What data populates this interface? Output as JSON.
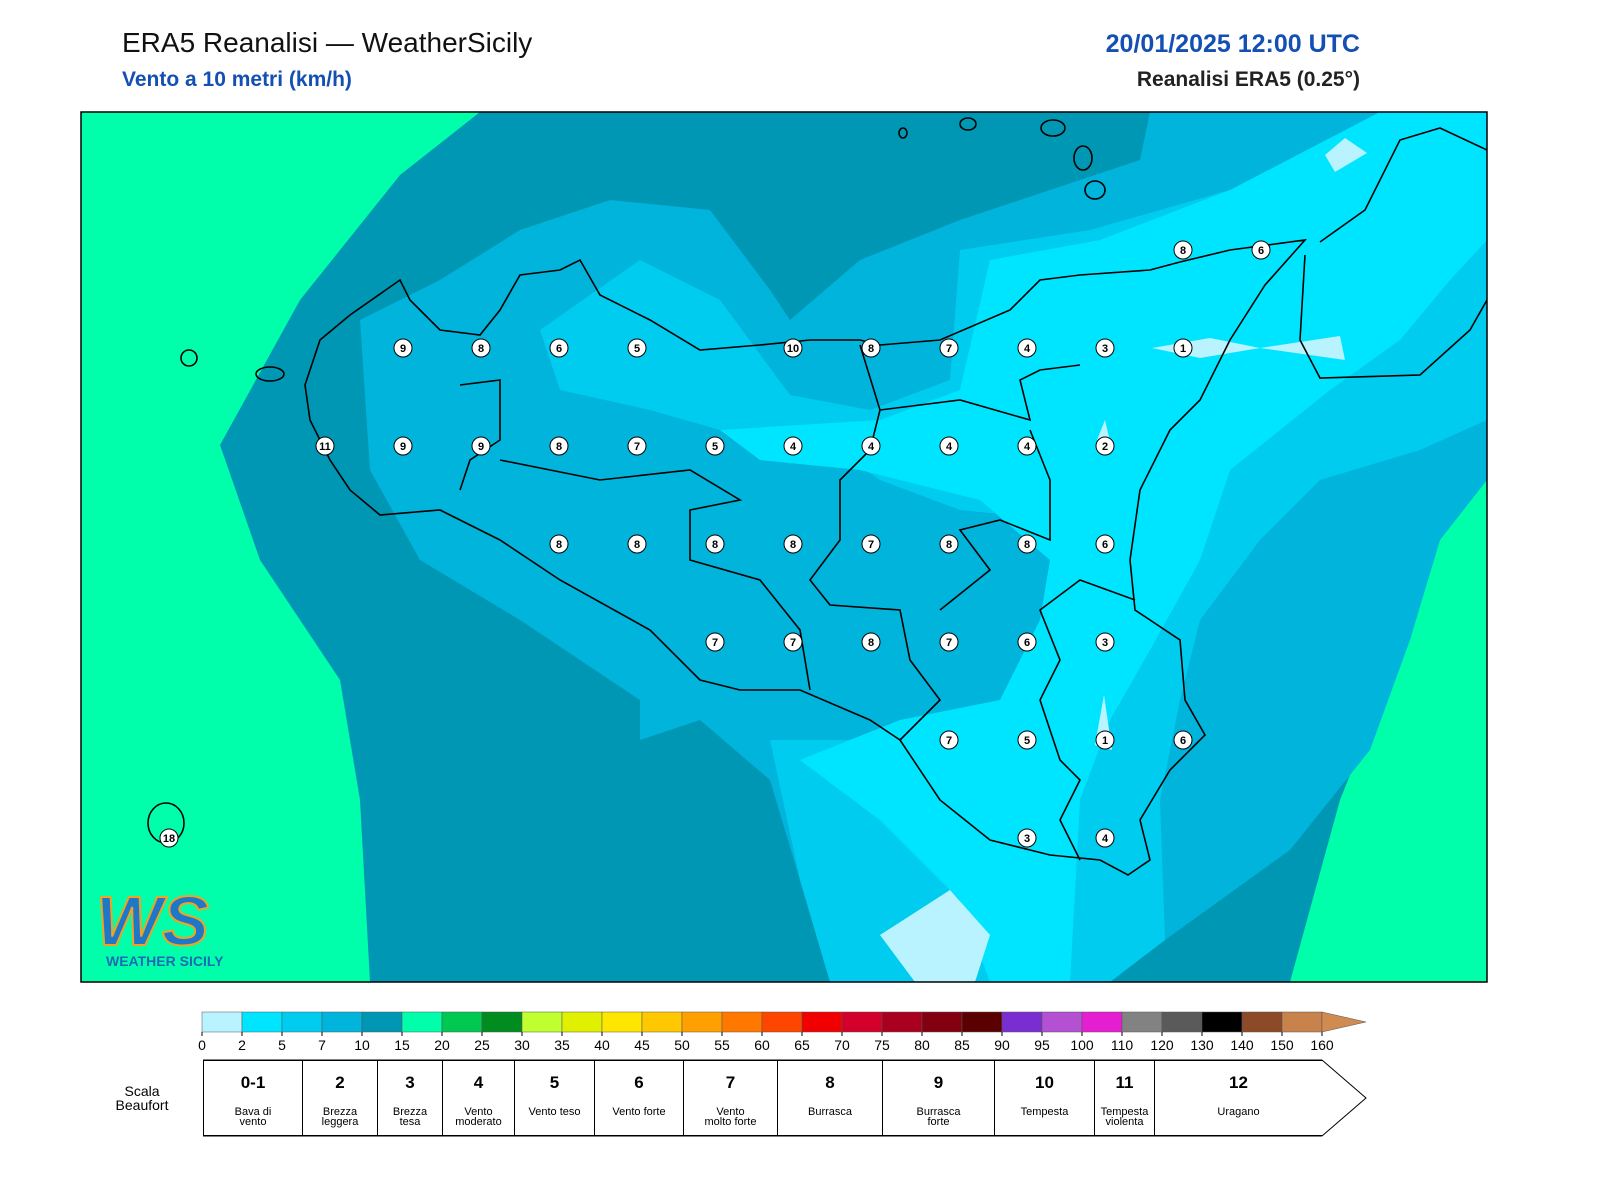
{
  "header": {
    "title": "ERA5 Reanalisi — WeatherSicily",
    "subtitle": "Vento a 10 metri (km/h)",
    "datetime": "20/01/2025 12:00 UTC",
    "source": "Reanalisi ERA5 (0.25°)"
  },
  "stations": {
    "rows": [
      [
        null,
        null,
        null,
        null,
        null,
        null,
        null,
        null,
        null,
        null,
        null,
        null,
        null,
        8,
        6
      ],
      [
        null,
        null,
        null,
        9,
        8,
        6,
        5,
        null,
        10,
        8,
        7,
        4,
        3,
        1,
        null
      ],
      [
        null,
        null,
        11,
        9,
        9,
        8,
        7,
        5,
        4,
        4,
        4,
        4,
        2,
        null,
        null
      ],
      [
        null,
        null,
        null,
        null,
        null,
        8,
        8,
        8,
        8,
        7,
        8,
        8,
        6,
        null,
        null
      ],
      [
        null,
        null,
        null,
        null,
        null,
        null,
        null,
        7,
        7,
        8,
        7,
        6,
        3,
        null,
        null
      ],
      [
        null,
        null,
        null,
        null,
        null,
        null,
        null,
        null,
        null,
        null,
        7,
        5,
        1,
        6,
        null
      ],
      [
        18,
        null,
        null,
        null,
        null,
        null,
        null,
        null,
        null,
        null,
        null,
        3,
        4,
        null,
        null
      ]
    ]
  },
  "colorbar": {
    "ticks": [
      0,
      2,
      5,
      7,
      10,
      15,
      20,
      25,
      30,
      35,
      40,
      45,
      50,
      55,
      60,
      65,
      70,
      75,
      80,
      85,
      90,
      95,
      100,
      110,
      120,
      130,
      140,
      150,
      160
    ],
    "colors": [
      "#b9f3ff",
      "#00e5ff",
      "#00ccf0",
      "#00b4dc",
      "#0097b4",
      "#00ffaa",
      "#00c850",
      "#008c1e",
      "#c0ff30",
      "#e0f000",
      "#ffe600",
      "#ffc800",
      "#ffa000",
      "#ff7800",
      "#ff4600",
      "#f00000",
      "#d2002a",
      "#aa0020",
      "#820010",
      "#5a0000",
      "#7a2ed2",
      "#b450d2",
      "#e61ed2",
      "#828282",
      "#5a5a5a",
      "#000000",
      "#8c4a28",
      "#c8824b"
    ],
    "extend_color": "#d08b50"
  },
  "beaufort": {
    "label": "Scala Beaufort",
    "classes": [
      {
        "force": "0-1",
        "description": "Bava di vento"
      },
      {
        "force": 2,
        "description": "Brezza leggera"
      },
      {
        "force": 3,
        "description": "Brezza tesa"
      },
      {
        "force": 4,
        "description": "Vento moderato"
      },
      {
        "force": 5,
        "description": "Vento teso"
      },
      {
        "force": 6,
        "description": "Vento forte"
      },
      {
        "force": 7,
        "description": "Vento molto forte"
      },
      {
        "force": 8,
        "description": "Burrasca"
      },
      {
        "force": 9,
        "description": "Burrasca forte"
      },
      {
        "force": 10,
        "description": "Tempesta"
      },
      {
        "force": 11,
        "description": "Tempesta violenta"
      },
      {
        "force": 12,
        "description": "Uragano"
      }
    ]
  },
  "logo": {
    "mark": "WS",
    "name": "WEATHER SICILY"
  }
}
